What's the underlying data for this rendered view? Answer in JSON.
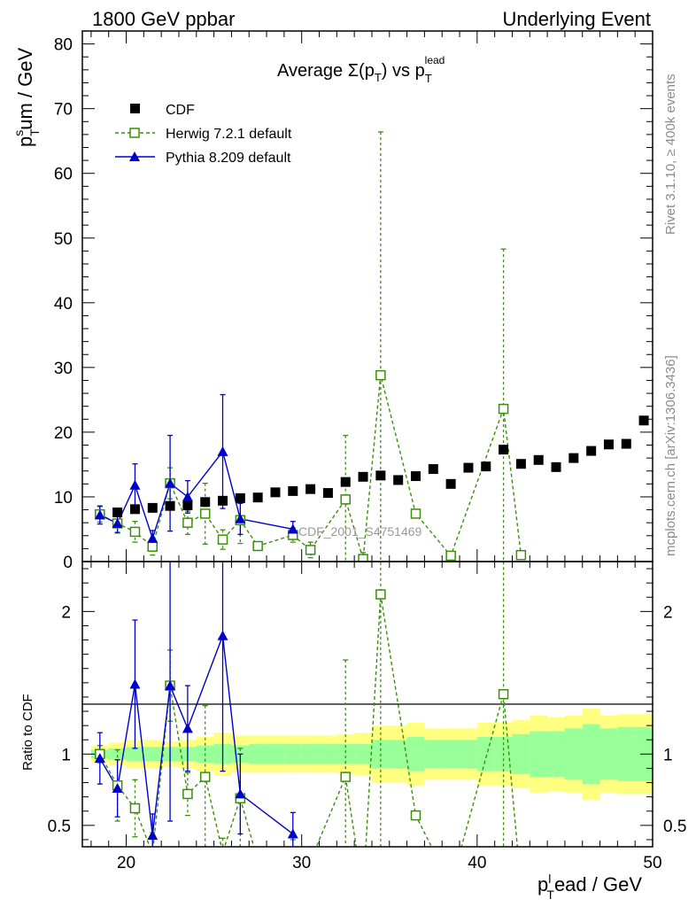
{
  "header": {
    "left": "1800 GeV ppbar",
    "right": "Underlying Event"
  },
  "side_labels": {
    "top": "Rivet 3.1.10, ≥ 400k events",
    "bottom": "mcplots.cern.ch [arXiv:1306.3436]"
  },
  "watermark": "CDF_2001_S4751469",
  "colors": {
    "cdf": "#000000",
    "herwig": "#3a8f0a",
    "pythia": "#0000cc",
    "band_inner": "#99ff99",
    "band_outer": "#ffff80"
  },
  "chart_data": [
    {
      "type": "scatter",
      "title": "Average Σ(p_T) vs p_T^lead",
      "title_parts": {
        "a": "Average ",
        "sigma": "Σ(p",
        "sub": "T",
        "close": ")",
        "vs": " vs p",
        "sup": "lead",
        "sub2": "T"
      },
      "xlabel": "p_T^lead / GeV",
      "xlabel_parts": {
        "p": "p",
        "sup": "l",
        "sub": "T",
        "rest": "ead / GeV"
      },
      "ylabel": "p_T^sum / GeV",
      "ylabel_parts": {
        "p": "p",
        "sup": "s",
        "sub": "T",
        "rest": "um / GeV"
      },
      "xlim": [
        17.5,
        50
      ],
      "ylim": [
        0,
        82
      ],
      "x_ticks": [
        20,
        30,
        40,
        50
      ],
      "y_ticks": [
        0,
        10,
        20,
        30,
        40,
        50,
        60,
        70,
        80
      ],
      "legend_position": "top-left",
      "series": [
        {
          "name": "CDF",
          "style": "square",
          "x": [
            18.5,
            19.5,
            20.5,
            21.5,
            22.5,
            23.5,
            24.5,
            25.5,
            26.5,
            27.5,
            28.5,
            29.5,
            30.5,
            31.5,
            32.5,
            33.5,
            34.5,
            35.5,
            36.5,
            37.5,
            38.5,
            39.5,
            40.5,
            41.5,
            42.5,
            43.5,
            44.5,
            45.5,
            46.5,
            47.5,
            48.5,
            49.5
          ],
          "y": [
            7.3,
            7.6,
            8.1,
            8.3,
            8.6,
            8.7,
            9.2,
            9.4,
            9.8,
            9.9,
            10.7,
            10.9,
            11.2,
            10.6,
            12.3,
            13.1,
            13.3,
            12.6,
            13.2,
            14.3,
            12.0,
            14.5,
            14.7,
            17.3,
            15.1,
            15.7,
            14.6,
            16.0,
            17.1,
            18.1,
            18.2,
            21.8
          ]
        },
        {
          "name": "Herwig 7.2.1 default",
          "style": "open-square-dashed",
          "x": [
            18.5,
            19.5,
            20.5,
            21.5,
            22.5,
            23.5,
            24.5,
            25.5,
            26.5,
            27.5,
            29.5,
            30.5,
            32.5,
            33.5,
            34.5,
            36.5,
            38.5,
            41.5,
            42.5
          ],
          "y": [
            7.3,
            5.9,
            4.6,
            2.3,
            12.1,
            6.0,
            7.4,
            3.4,
            6.4,
            2.4,
            4.1,
            1.8,
            9.6,
            0.4,
            28.8,
            7.4,
            0.9,
            23.6,
            1.0
          ],
          "err": [
            1.2,
            1.5,
            1.6,
            1.3,
            2.4,
            1.8,
            4.7,
            1.5,
            3.6,
            0,
            1.1,
            1.2,
            9.9,
            1.0,
            37.6,
            0,
            0,
            24.7,
            0
          ],
          "ratio": [
            1.0,
            0.78,
            0.62,
            0.3,
            1.48,
            0.72,
            0.84,
            0.31,
            0.69,
            0.25,
            0.3,
            0.25,
            0.84,
            0.03,
            2.12,
            0.57,
            0.08,
            1.42,
            0.07
          ],
          "ratio_err": [
            0.06,
            0.25,
            0.2,
            0.15,
            0.25,
            0.15,
            0.5,
            0.1,
            0.35,
            0,
            0.1,
            0.1,
            0.82,
            0.08,
            2.2,
            0,
            0,
            1.45,
            0
          ]
        },
        {
          "name": "Pythia 8.209 default",
          "style": "triangle-solid",
          "x": [
            18.5,
            19.5,
            20.5,
            21.5,
            22.5,
            23.5,
            25.5,
            26.5,
            29.5
          ],
          "y": [
            7.2,
            5.9,
            11.8,
            3.6,
            12.1,
            10.0,
            17.0,
            6.6,
            5.0
          ],
          "err": [
            1.4,
            1.4,
            3.3,
            1.2,
            7.4,
            2.5,
            8.8,
            2.4,
            1.2
          ],
          "ratio": [
            0.97,
            0.76,
            1.49,
            0.43,
            1.48,
            1.18,
            1.83,
            0.72,
            0.44
          ],
          "ratio_err": [
            0.18,
            0.2,
            0.45,
            0.15,
            0.95,
            0.3,
            0.95,
            0.28,
            0.15
          ]
        }
      ]
    },
    {
      "type": "scatter",
      "title": "",
      "xlabel": "",
      "ylabel": "Ratio to CDF",
      "xlim": [
        17.5,
        50
      ],
      "ylim": [
        0.35,
        2.35
      ],
      "y_ticks": [
        0.5,
        1,
        2
      ],
      "y_tick_labels": [
        "0.5",
        "1",
        "2"
      ],
      "x_ticks": [
        20,
        30,
        40,
        50
      ],
      "reference_line": 1,
      "bands": {
        "x_edges": [
          18,
          19,
          20,
          21,
          22,
          23,
          24,
          25,
          26,
          27,
          28,
          29,
          30,
          31,
          32,
          33,
          34,
          35,
          36,
          37,
          38,
          39,
          40,
          41,
          42,
          43,
          44,
          45,
          46,
          47,
          48,
          49,
          50
        ],
        "inner": [
          0.03,
          0.04,
          0.05,
          0.05,
          0.05,
          0.05,
          0.06,
          0.07,
          0.06,
          0.07,
          0.07,
          0.07,
          0.07,
          0.07,
          0.07,
          0.07,
          0.1,
          0.1,
          0.12,
          0.1,
          0.1,
          0.1,
          0.12,
          0.12,
          0.14,
          0.16,
          0.16,
          0.18,
          0.21,
          0.18,
          0.19,
          0.19
        ],
        "outer": [
          0.06,
          0.08,
          0.1,
          0.1,
          0.09,
          0.1,
          0.12,
          0.15,
          0.13,
          0.13,
          0.13,
          0.13,
          0.13,
          0.13,
          0.14,
          0.15,
          0.2,
          0.2,
          0.22,
          0.18,
          0.18,
          0.18,
          0.22,
          0.22,
          0.24,
          0.27,
          0.26,
          0.27,
          0.32,
          0.27,
          0.28,
          0.28
        ]
      }
    }
  ]
}
